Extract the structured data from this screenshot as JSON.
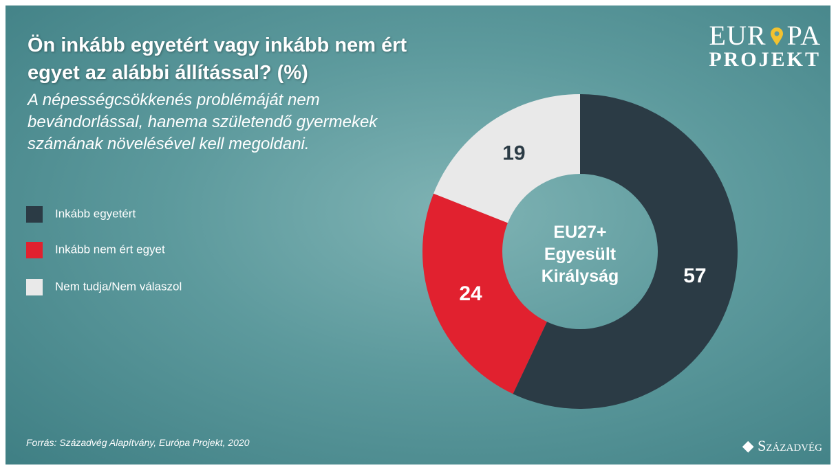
{
  "chart_data": {
    "type": "pie",
    "title": "Ön inkább egyetért vagy inkább nem ért egyet az alábbi állítással?  (%)",
    "subtitle": "A népességcsökkenés problémáját nem bevándorlással, hanema születendő gyermekek számának növelésével kell megoldani.",
    "center_label": [
      "EU27+",
      "Egyesült",
      "Királyság"
    ],
    "categories": [
      "Inkább egyetért",
      "Inkább nem ért egyet",
      "Nem tudja/Nem válaszol"
    ],
    "values": [
      57,
      24,
      19
    ],
    "colors": [
      "#2b3b45",
      "#e1212f",
      "#e9e9e9"
    ],
    "label_colors": [
      "#ffffff",
      "#ffffff",
      "#2b3b45"
    ],
    "source": "Forrás: Századvég Alapítvány, Európa Projekt, 2020"
  },
  "logo": {
    "top_left": "EUR",
    "top_right": "PA",
    "bottom": "PROJEKT"
  },
  "brand": "Századvég"
}
